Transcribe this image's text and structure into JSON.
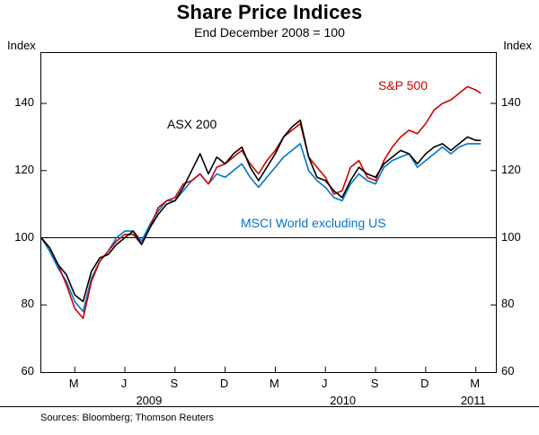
{
  "header": {
    "title": "Share Price Indices",
    "subtitle": "End December 2008 = 100"
  },
  "axes": {
    "y_unit_left": "Index",
    "y_unit_right": "Index"
  },
  "footer": {
    "sources": "Sources: Bloomberg; Thomson Reuters"
  },
  "chart_data": {
    "type": "line",
    "title": "Share Price Indices",
    "subtitle": "End December 2008 = 100",
    "ylabel": "Index",
    "ylim": [
      60,
      155
    ],
    "yticks": [
      60,
      80,
      100,
      120,
      140
    ],
    "grid_values": [
      100
    ],
    "x_unit": "months since end-December 2008",
    "xlim": [
      0,
      27.2
    ],
    "xticks": [
      {
        "pos": 2,
        "label": "M"
      },
      {
        "pos": 5,
        "label": "J"
      },
      {
        "pos": 8,
        "label": "S"
      },
      {
        "pos": 11,
        "label": "D"
      },
      {
        "pos": 14,
        "label": "M"
      },
      {
        "pos": 17,
        "label": "J"
      },
      {
        "pos": 20,
        "label": "S"
      },
      {
        "pos": 23,
        "label": "D"
      },
      {
        "pos": 26,
        "label": "M"
      }
    ],
    "year_labels": [
      {
        "pos": 6.5,
        "label": "2009"
      },
      {
        "pos": 18.1,
        "label": "2010"
      },
      {
        "pos": 25.9,
        "label": "2011"
      }
    ],
    "legend_position": "inline-labels",
    "grid": "horizontal line at 100 only",
    "x": [
      0,
      0.5,
      1,
      1.5,
      2,
      2.5,
      3,
      3.5,
      4,
      4.5,
      5,
      5.5,
      6,
      6.5,
      7,
      7.5,
      8,
      8.5,
      9,
      9.5,
      10,
      10.5,
      11,
      11.5,
      12,
      12.5,
      13,
      13.5,
      14,
      14.5,
      15,
      15.5,
      16,
      16.5,
      17,
      17.5,
      18,
      18.5,
      19,
      19.5,
      20,
      20.5,
      21,
      21.5,
      22,
      22.5,
      23,
      23.5,
      24,
      24.5,
      25,
      25.5,
      26,
      26.3
    ],
    "series": [
      {
        "name": "ASX 200",
        "color": "#000000",
        "values": [
          100,
          97,
          92,
          89,
          83,
          81,
          90,
          94,
          95,
          98,
          100,
          102,
          98,
          103,
          107,
          110,
          111,
          115,
          120,
          125,
          119,
          124,
          122,
          125,
          127,
          121,
          117,
          121,
          125,
          130,
          133,
          135,
          124,
          118,
          117,
          114,
          112,
          117,
          121,
          119,
          118,
          122,
          124,
          126,
          125,
          122,
          125,
          127,
          128,
          126,
          128,
          130,
          129,
          129
        ]
      },
      {
        "name": "S&P 500",
        "color": "#cc0000",
        "values": [
          100,
          97,
          92,
          86,
          79,
          76,
          87,
          93,
          96,
          99,
          101,
          101,
          98,
          103,
          109,
          111,
          112,
          116,
          117,
          119,
          116,
          121,
          122,
          124,
          126,
          122,
          119,
          123,
          126,
          130,
          132,
          134,
          124,
          121,
          118,
          113,
          114,
          121,
          123,
          118,
          117,
          123,
          127,
          130,
          132,
          131,
          134,
          138,
          140,
          141,
          143,
          145,
          144,
          143
        ]
      },
      {
        "name": "MSCI World excluding US",
        "color": "#0073cf",
        "values": [
          100,
          96,
          91,
          87,
          81,
          78,
          88,
          93,
          96,
          100,
          102,
          102,
          99,
          104,
          108,
          111,
          111,
          114,
          117,
          119,
          116,
          119,
          118,
          120,
          122,
          118,
          115,
          118,
          121,
          124,
          126,
          128,
          120,
          117,
          115,
          112,
          111,
          116,
          119,
          117,
          116,
          121,
          123,
          124,
          125,
          121,
          123,
          125,
          127,
          125,
          127,
          128,
          128,
          128
        ]
      }
    ]
  }
}
